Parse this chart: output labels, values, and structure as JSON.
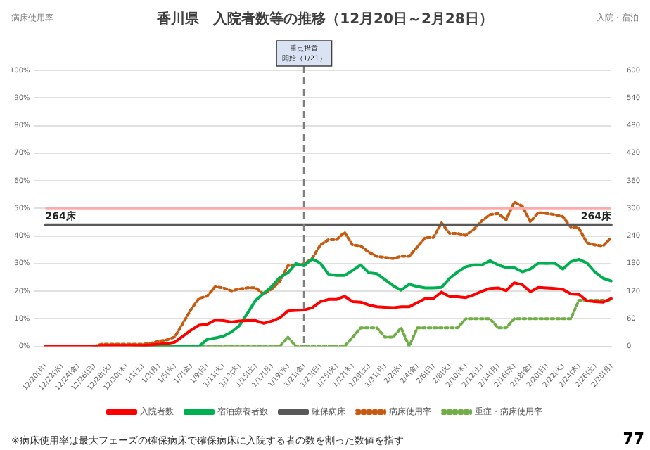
{
  "chart_data": {
    "type": "line",
    "title": "香川県　入院者数等の推移（12月20日～2月28日）",
    "categories": [
      "12/20(月)",
      null,
      "12/22(水)",
      null,
      "12/24(金)",
      null,
      "12/26(日)",
      null,
      "12/28(火)",
      null,
      "12/30(木)",
      null,
      "1/1(土)",
      null,
      "1/3(月)",
      null,
      "1/5(水)",
      null,
      "1/7(金)",
      null,
      "1/9(日)",
      null,
      "1/11(火)",
      null,
      "1/13(木)",
      null,
      "1/15(土)",
      null,
      "1/17(月)",
      null,
      "1/19(水)",
      null,
      "1/21(金)",
      null,
      "1/23(日)",
      null,
      "1/25(火)",
      null,
      "1/27(木)",
      null,
      "1/29(土)",
      null,
      "1/31(月)",
      null,
      "2/2(水)",
      null,
      "2/4(金)",
      null,
      "2/6(日)",
      null,
      "2/8(火)",
      null,
      "2/10(木)",
      null,
      "2/12(土)",
      null,
      "2/14(月)",
      null,
      "2/16(水)",
      null,
      "2/18(金)",
      null,
      "2/20(日)",
      null,
      "2/22(火)",
      null,
      "2/24(木)",
      null,
      "2/26(土)",
      null,
      "2/28(月)"
    ],
    "series": [
      {
        "name": "入院者数",
        "color": "#ff0000",
        "axis": "y2",
        "line_style": "solid",
        "values": [
          0,
          0,
          0,
          0,
          0,
          0,
          0,
          2,
          2,
          2,
          2,
          2,
          2,
          3,
          5,
          6,
          9,
          22,
          35,
          46,
          48,
          57,
          56,
          53,
          55,
          56,
          56,
          50,
          55,
          62,
          77,
          78,
          79,
          84,
          97,
          102,
          102,
          109,
          97,
          96,
          90,
          86,
          85,
          84,
          86,
          86,
          95,
          104,
          104,
          118,
          108,
          108,
          106,
          112,
          120,
          126,
          127,
          121,
          138,
          134,
          119,
          128,
          127,
          126,
          124,
          114,
          113,
          99,
          97,
          96,
          104
        ]
      },
      {
        "name": "宿泊療養者数",
        "color": "#00b050",
        "axis": "y2",
        "line_style": "solid",
        "values": [
          null,
          null,
          null,
          null,
          null,
          null,
          null,
          null,
          null,
          null,
          null,
          null,
          0,
          0,
          0,
          0,
          0,
          0,
          0,
          0,
          15,
          18,
          22,
          31,
          45,
          72,
          100,
          115,
          130,
          150,
          160,
          180,
          175,
          190,
          181,
          157,
          154,
          154,
          165,
          177,
          160,
          158,
          145,
          132,
          122,
          135,
          130,
          127,
          127,
          128,
          148,
          162,
          173,
          177,
          177,
          186,
          177,
          171,
          171,
          162,
          168,
          181,
          180,
          181,
          168,
          184,
          189,
          181,
          161,
          148,
          142
        ]
      },
      {
        "name": "確保病床",
        "color": "#595959",
        "axis": "y2",
        "line_style": "solid",
        "values": [
          264,
          264,
          264,
          264,
          264,
          264,
          264,
          264,
          264,
          264,
          264,
          264,
          264,
          264,
          264,
          264,
          264,
          264,
          264,
          264,
          264,
          264,
          264,
          264,
          264,
          264,
          264,
          264,
          264,
          264,
          264,
          264,
          264,
          264,
          264,
          264,
          264,
          264,
          264,
          264,
          264,
          264,
          264,
          264,
          264,
          264,
          264,
          264,
          264,
          264,
          264,
          264,
          264,
          264,
          264,
          264,
          264,
          264,
          264,
          264,
          264,
          264,
          264,
          264,
          264,
          264,
          264,
          264,
          264,
          264,
          264
        ],
        "value_labels": [
          "264床",
          null,
          null,
          null,
          null,
          null,
          null,
          null,
          null,
          null,
          null,
          null,
          null,
          null,
          null,
          null,
          null,
          null,
          null,
          null,
          null,
          null,
          null,
          null,
          null,
          null,
          null,
          null,
          null,
          null,
          null,
          null,
          null,
          null,
          null,
          null,
          null,
          null,
          null,
          null,
          null,
          null,
          null,
          null,
          null,
          null,
          null,
          null,
          null,
          null,
          null,
          null,
          null,
          null,
          null,
          null,
          null,
          null,
          null,
          null,
          null,
          null,
          null,
          null,
          null,
          null,
          null,
          null,
          null,
          null,
          "264床"
        ]
      },
      {
        "name": "病床使用率",
        "color": "#c55a11",
        "axis": "y",
        "line_style": "dotted",
        "values": [
          null,
          null,
          null,
          null,
          null,
          null,
          0,
          0.8,
          0.8,
          0.8,
          0.8,
          0.8,
          0.8,
          1.1,
          1.9,
          2.3,
          3.4,
          8.3,
          13.3,
          17.4,
          18.2,
          21.6,
          21.2,
          20.1,
          20.8,
          21.2,
          21.2,
          18.9,
          20.8,
          23.5,
          29.2,
          29.5,
          29.9,
          31.8,
          36.7,
          38.6,
          38.6,
          41.3,
          36.7,
          36.4,
          34.1,
          32.6,
          32.2,
          31.8,
          32.6,
          32.6,
          36.0,
          39.4,
          39.4,
          44.7,
          40.9,
          40.9,
          40.2,
          42.4,
          45.5,
          47.7,
          48.1,
          45.8,
          52.3,
          50.8,
          45.1,
          48.5,
          48.1,
          47.7,
          47.0,
          43.2,
          42.8,
          37.5,
          36.7,
          36.4,
          39.4
        ]
      },
      {
        "name": "重症・病床使用率",
        "color": "#70ad47",
        "axis": "y",
        "line_style": "dotted",
        "values": [
          null,
          null,
          null,
          null,
          null,
          null,
          null,
          null,
          null,
          null,
          null,
          0,
          0,
          0,
          0,
          0,
          0,
          0,
          0,
          0,
          0,
          0,
          0,
          0,
          0,
          0,
          0,
          0,
          0,
          0,
          3.3,
          0,
          0,
          0,
          0,
          0,
          0,
          0,
          3.3,
          6.7,
          6.7,
          6.7,
          3.3,
          3.3,
          6.7,
          0,
          6.7,
          6.7,
          6.7,
          6.7,
          6.7,
          6.7,
          10,
          10,
          10,
          10,
          6.7,
          6.7,
          10,
          10,
          10,
          10,
          10,
          10,
          10,
          10,
          16.7,
          16.7,
          16.7,
          16.7,
          16.7
        ]
      }
    ],
    "ylim": [
      0,
      100
    ],
    "yticks": [
      {
        "value": 0,
        "label": "0%"
      },
      {
        "value": 10,
        "label": "10%"
      },
      {
        "value": 20,
        "label": "20%"
      },
      {
        "value": 30,
        "label": "30%"
      },
      {
        "value": 40,
        "label": "40%"
      },
      {
        "value": 50,
        "label": "50%"
      },
      {
        "value": 60,
        "label": "60%"
      },
      {
        "value": 70,
        "label": "70%"
      },
      {
        "value": 80,
        "label": "80%"
      },
      {
        "value": 90,
        "label": "90%"
      },
      {
        "value": 100,
        "label": "100%"
      }
    ],
    "y2lim": [
      0,
      600
    ],
    "y2ticks": [
      0,
      60,
      120,
      180,
      240,
      300,
      360,
      420,
      480,
      540,
      600
    ],
    "ref_lines": [
      {
        "axis": "x",
        "value": "1/21(金)",
        "label": "重点措置開始（1/21）",
        "color": "#7f7f7f",
        "line_style": "dashed"
      },
      {
        "axis": "y",
        "value": 50,
        "color": "#ffaaaa",
        "line_style": "solid"
      }
    ],
    "annotations": [
      "病床使用率",
      "入院・宿泊",
      "※病床使用率は最大フェーズの確保病床で確保病床に入院する者の数を割った数値を指す",
      "77"
    ],
    "grid": "y",
    "legend": "bottom",
    "marker": "none"
  }
}
